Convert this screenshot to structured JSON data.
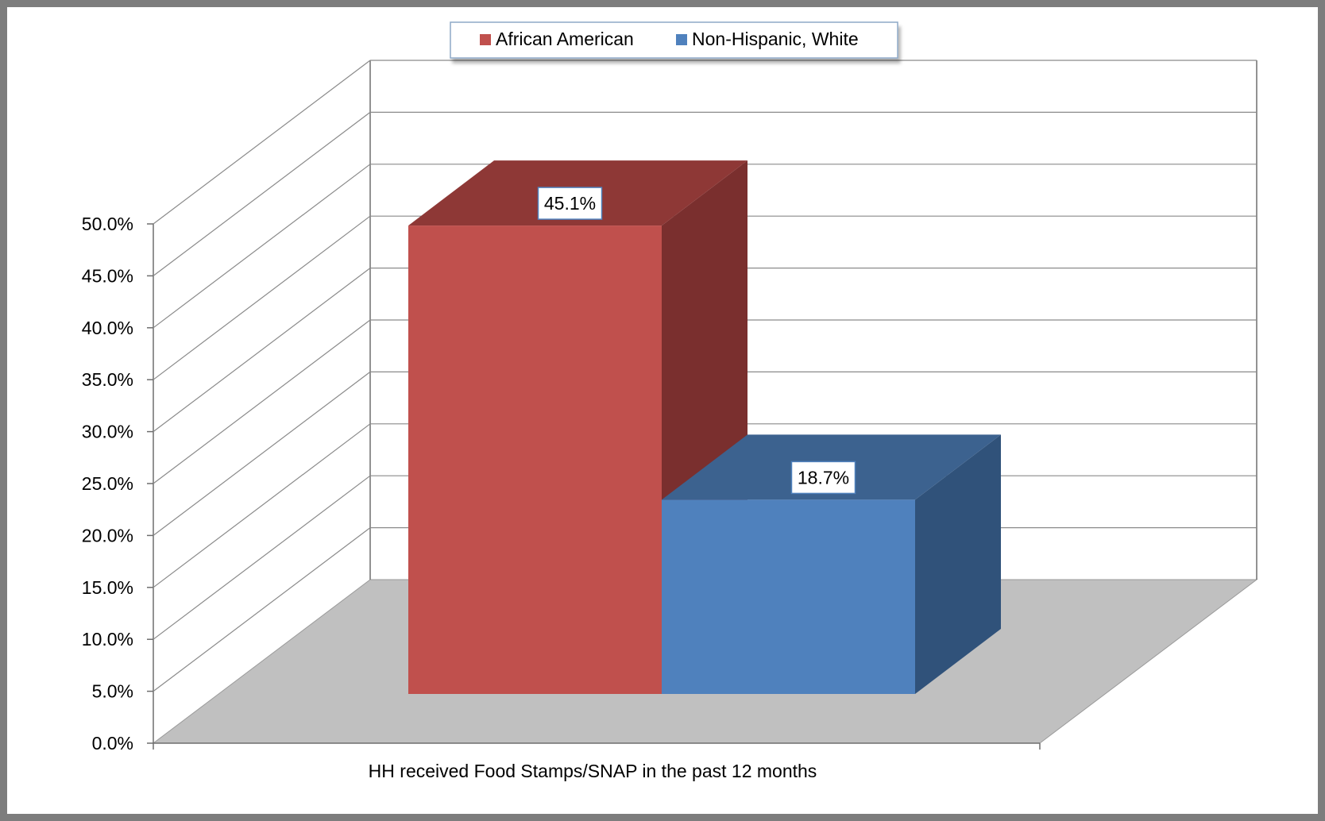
{
  "chart_data": {
    "type": "bar",
    "categories": [
      "HH received Food Stamps/SNAP in the past 12 months"
    ],
    "series": [
      {
        "name": "African American",
        "values": [
          45.1
        ],
        "color": "#C0504D"
      },
      {
        "name": "Non-Hispanic, White",
        "values": [
          18.7
        ],
        "color": "#4F81BD"
      }
    ],
    "data_labels": [
      "45.1%",
      "18.7%"
    ],
    "ylim": [
      0,
      50
    ],
    "yticks": [
      "0.0%",
      "5.0%",
      "10.0%",
      "15.0%",
      "20.0%",
      "25.0%",
      "30.0%",
      "35.0%",
      "40.0%",
      "45.0%",
      "50.0%"
    ],
    "title": "",
    "xlabel": "",
    "ylabel": "",
    "grid": true,
    "legend_position": "top",
    "style": "3d-clustered-column"
  }
}
